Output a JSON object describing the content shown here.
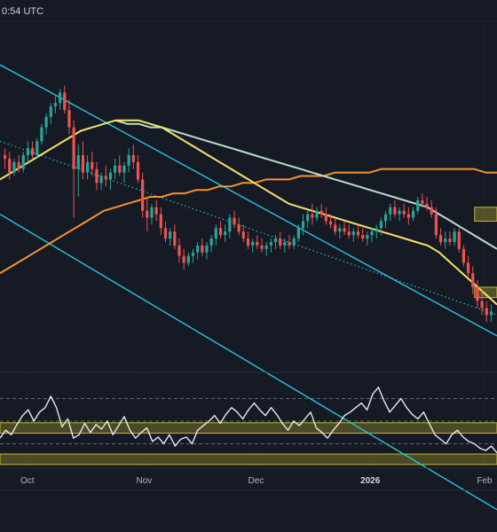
{
  "header": {
    "timestamp": "0:54 UTC"
  },
  "colors": {
    "background": "#161a25",
    "up_candle": "#26a69a",
    "down_candle": "#ef5350",
    "channel": "#26c6da",
    "mid_line": "#26c6da",
    "ma_fast": "#f7e36a",
    "ma_mid": "#b8e0c8",
    "ma_slow": "#f5922f",
    "support_zone": "#c8b830",
    "rsi_line": "#e6e9f0",
    "grid": "#2a2e39"
  },
  "chart_data": {
    "type": "candlestick",
    "title": "",
    "xlabel": "",
    "ylabel": "",
    "x_ticks": [
      {
        "label": "Oct",
        "bold": false
      },
      {
        "label": "Nov",
        "bold": false
      },
      {
        "label": "Dec",
        "bold": false
      },
      {
        "label": "2026",
        "bold": true
      },
      {
        "label": "Feb",
        "bold": false
      }
    ],
    "candles": [
      {
        "o": 62,
        "h": 64,
        "l": 58,
        "c": 61
      },
      {
        "o": 61,
        "h": 63,
        "l": 55,
        "c": 57
      },
      {
        "o": 57,
        "h": 61,
        "l": 56,
        "c": 60
      },
      {
        "o": 60,
        "h": 62,
        "l": 57,
        "c": 58
      },
      {
        "o": 58,
        "h": 63,
        "l": 57,
        "c": 62
      },
      {
        "o": 62,
        "h": 66,
        "l": 60,
        "c": 64
      },
      {
        "o": 64,
        "h": 66,
        "l": 61,
        "c": 62
      },
      {
        "o": 62,
        "h": 67,
        "l": 61,
        "c": 66
      },
      {
        "o": 66,
        "h": 71,
        "l": 65,
        "c": 70
      },
      {
        "o": 70,
        "h": 74,
        "l": 68,
        "c": 73
      },
      {
        "o": 73,
        "h": 77,
        "l": 71,
        "c": 76
      },
      {
        "o": 76,
        "h": 79,
        "l": 74,
        "c": 77
      },
      {
        "o": 77,
        "h": 81,
        "l": 75,
        "c": 80
      },
      {
        "o": 80,
        "h": 82,
        "l": 74,
        "c": 75
      },
      {
        "o": 75,
        "h": 78,
        "l": 68,
        "c": 70
      },
      {
        "o": 70,
        "h": 72,
        "l": 44,
        "c": 58
      },
      {
        "o": 58,
        "h": 65,
        "l": 50,
        "c": 62
      },
      {
        "o": 62,
        "h": 66,
        "l": 55,
        "c": 57
      },
      {
        "o": 57,
        "h": 62,
        "l": 55,
        "c": 60
      },
      {
        "o": 60,
        "h": 63,
        "l": 56,
        "c": 58
      },
      {
        "o": 58,
        "h": 60,
        "l": 52,
        "c": 54
      },
      {
        "o": 54,
        "h": 57,
        "l": 52,
        "c": 56
      },
      {
        "o": 56,
        "h": 59,
        "l": 53,
        "c": 55
      },
      {
        "o": 55,
        "h": 58,
        "l": 52,
        "c": 57
      },
      {
        "o": 57,
        "h": 61,
        "l": 55,
        "c": 59
      },
      {
        "o": 59,
        "h": 62,
        "l": 56,
        "c": 57
      },
      {
        "o": 57,
        "h": 60,
        "l": 54,
        "c": 59
      },
      {
        "o": 59,
        "h": 64,
        "l": 57,
        "c": 62
      },
      {
        "o": 62,
        "h": 65,
        "l": 58,
        "c": 60
      },
      {
        "o": 60,
        "h": 62,
        "l": 54,
        "c": 55
      },
      {
        "o": 55,
        "h": 57,
        "l": 44,
        "c": 46
      },
      {
        "o": 46,
        "h": 50,
        "l": 40,
        "c": 44
      },
      {
        "o": 44,
        "h": 48,
        "l": 42,
        "c": 47
      },
      {
        "o": 47,
        "h": 49,
        "l": 43,
        "c": 45
      },
      {
        "o": 45,
        "h": 47,
        "l": 39,
        "c": 41
      },
      {
        "o": 41,
        "h": 43,
        "l": 37,
        "c": 38
      },
      {
        "o": 38,
        "h": 41,
        "l": 36,
        "c": 40
      },
      {
        "o": 40,
        "h": 42,
        "l": 35,
        "c": 36
      },
      {
        "o": 36,
        "h": 38,
        "l": 31,
        "c": 33
      },
      {
        "o": 33,
        "h": 35,
        "l": 29,
        "c": 31
      },
      {
        "o": 31,
        "h": 34,
        "l": 30,
        "c": 33
      },
      {
        "o": 33,
        "h": 35,
        "l": 31,
        "c": 34
      },
      {
        "o": 34,
        "h": 37,
        "l": 32,
        "c": 36
      },
      {
        "o": 36,
        "h": 38,
        "l": 33,
        "c": 34
      },
      {
        "o": 34,
        "h": 37,
        "l": 32,
        "c": 36
      },
      {
        "o": 36,
        "h": 39,
        "l": 34,
        "c": 38
      },
      {
        "o": 38,
        "h": 42,
        "l": 36,
        "c": 41
      },
      {
        "o": 41,
        "h": 43,
        "l": 38,
        "c": 39
      },
      {
        "o": 39,
        "h": 42,
        "l": 37,
        "c": 40
      },
      {
        "o": 40,
        "h": 45,
        "l": 38,
        "c": 44
      },
      {
        "o": 44,
        "h": 46,
        "l": 41,
        "c": 42
      },
      {
        "o": 42,
        "h": 44,
        "l": 39,
        "c": 40
      },
      {
        "o": 40,
        "h": 42,
        "l": 37,
        "c": 38
      },
      {
        "o": 38,
        "h": 40,
        "l": 35,
        "c": 36
      },
      {
        "o": 36,
        "h": 38,
        "l": 34,
        "c": 37
      },
      {
        "o": 37,
        "h": 39,
        "l": 35,
        "c": 36
      },
      {
        "o": 36,
        "h": 38,
        "l": 34,
        "c": 35
      },
      {
        "o": 35,
        "h": 37,
        "l": 33,
        "c": 36
      },
      {
        "o": 36,
        "h": 38,
        "l": 34,
        "c": 37
      },
      {
        "o": 37,
        "h": 39,
        "l": 35,
        "c": 38
      },
      {
        "o": 38,
        "h": 40,
        "l": 35,
        "c": 36
      },
      {
        "o": 36,
        "h": 38,
        "l": 34,
        "c": 37
      },
      {
        "o": 37,
        "h": 39,
        "l": 35,
        "c": 36
      },
      {
        "o": 36,
        "h": 39,
        "l": 35,
        "c": 38
      },
      {
        "o": 38,
        "h": 42,
        "l": 37,
        "c": 41
      },
      {
        "o": 41,
        "h": 45,
        "l": 39,
        "c": 43
      },
      {
        "o": 43,
        "h": 46,
        "l": 41,
        "c": 45
      },
      {
        "o": 45,
        "h": 48,
        "l": 42,
        "c": 44
      },
      {
        "o": 44,
        "h": 47,
        "l": 43,
        "c": 46
      },
      {
        "o": 46,
        "h": 48,
        "l": 44,
        "c": 45
      },
      {
        "o": 45,
        "h": 47,
        "l": 42,
        "c": 43
      },
      {
        "o": 43,
        "h": 45,
        "l": 41,
        "c": 42
      },
      {
        "o": 42,
        "h": 44,
        "l": 39,
        "c": 40
      },
      {
        "o": 40,
        "h": 42,
        "l": 38,
        "c": 41
      },
      {
        "o": 41,
        "h": 43,
        "l": 39,
        "c": 40
      },
      {
        "o": 40,
        "h": 42,
        "l": 38,
        "c": 39
      },
      {
        "o": 39,
        "h": 41,
        "l": 37,
        "c": 40
      },
      {
        "o": 40,
        "h": 42,
        "l": 38,
        "c": 39
      },
      {
        "o": 39,
        "h": 41,
        "l": 37,
        "c": 38
      },
      {
        "o": 38,
        "h": 40,
        "l": 36,
        "c": 39
      },
      {
        "o": 39,
        "h": 41,
        "l": 37,
        "c": 40
      },
      {
        "o": 40,
        "h": 42,
        "l": 38,
        "c": 41
      },
      {
        "o": 41,
        "h": 44,
        "l": 39,
        "c": 43
      },
      {
        "o": 43,
        "h": 46,
        "l": 41,
        "c": 45
      },
      {
        "o": 45,
        "h": 48,
        "l": 43,
        "c": 47
      },
      {
        "o": 47,
        "h": 49,
        "l": 44,
        "c": 45
      },
      {
        "o": 45,
        "h": 47,
        "l": 43,
        "c": 46
      },
      {
        "o": 46,
        "h": 48,
        "l": 44,
        "c": 45
      },
      {
        "o": 45,
        "h": 47,
        "l": 42,
        "c": 44
      },
      {
        "o": 44,
        "h": 47,
        "l": 43,
        "c": 46
      },
      {
        "o": 46,
        "h": 50,
        "l": 45,
        "c": 49
      },
      {
        "o": 49,
        "h": 51,
        "l": 47,
        "c": 48
      },
      {
        "o": 48,
        "h": 50,
        "l": 46,
        "c": 47
      },
      {
        "o": 47,
        "h": 49,
        "l": 44,
        "c": 45
      },
      {
        "o": 45,
        "h": 47,
        "l": 38,
        "c": 39
      },
      {
        "o": 39,
        "h": 41,
        "l": 36,
        "c": 37
      },
      {
        "o": 37,
        "h": 40,
        "l": 35,
        "c": 38
      },
      {
        "o": 38,
        "h": 40,
        "l": 36,
        "c": 37
      },
      {
        "o": 37,
        "h": 41,
        "l": 36,
        "c": 40
      },
      {
        "o": 40,
        "h": 41,
        "l": 34,
        "c": 35
      },
      {
        "o": 35,
        "h": 36,
        "l": 30,
        "c": 31
      },
      {
        "o": 31,
        "h": 33,
        "l": 27,
        "c": 28
      },
      {
        "o": 28,
        "h": 30,
        "l": 22,
        "c": 24
      },
      {
        "o": 24,
        "h": 26,
        "l": 18,
        "c": 20
      },
      {
        "o": 20,
        "h": 23,
        "l": 16,
        "c": 18
      },
      {
        "o": 18,
        "h": 20,
        "l": 14,
        "c": 16
      },
      {
        "o": 16,
        "h": 19,
        "l": 14,
        "c": 17
      }
    ],
    "price_range": [
      0,
      100
    ],
    "ma_fast": [
      55,
      57,
      59,
      61,
      63,
      65,
      67,
      69,
      70,
      71,
      72,
      72,
      72,
      71,
      70,
      68,
      66,
      64,
      62,
      60,
      58,
      56,
      54,
      52,
      50,
      48,
      47,
      46,
      45,
      44,
      43,
      42,
      41,
      40,
      39,
      38,
      37,
      36,
      34,
      31,
      28,
      25,
      22,
      19
    ],
    "ma_mid": [
      null,
      null,
      null,
      null,
      null,
      null,
      null,
      null,
      null,
      null,
      72,
      71,
      71,
      70,
      70,
      69,
      68,
      67,
      66,
      65,
      64,
      63,
      62,
      61,
      60,
      59,
      58,
      57,
      56,
      55,
      54,
      53,
      52,
      51,
      50,
      49,
      48,
      47,
      45,
      43,
      41,
      39,
      37,
      35
    ],
    "ma_slow": [
      28,
      30,
      32,
      34,
      36,
      38,
      40,
      42,
      44,
      46,
      47,
      48,
      49,
      50,
      50,
      51,
      51,
      52,
      52,
      53,
      53,
      54,
      54,
      55,
      55,
      55,
      56,
      56,
      56,
      57,
      57,
      57,
      57,
      58,
      58,
      58,
      58,
      58,
      58,
      58,
      58,
      58,
      57,
      57
    ],
    "channel_upper": [
      88,
      10
    ],
    "channel_lower": [
      45,
      -40
    ],
    "mid_trend": [
      66,
      16
    ],
    "resistance_zones": [
      [
        43,
        47
      ],
      [
        21,
        24
      ]
    ],
    "support_zones": [
      [
        -18,
        -15
      ],
      [
        -27,
        -24
      ]
    ],
    "rsi": [
      35,
      42,
      38,
      47,
      55,
      60,
      50,
      58,
      62,
      72,
      62,
      45,
      52,
      35,
      38,
      48,
      40,
      47,
      43,
      50,
      38,
      46,
      54,
      42,
      35,
      40,
      44,
      32,
      36,
      30,
      38,
      28,
      34,
      36,
      30,
      42,
      46,
      50,
      55,
      48,
      56,
      62,
      58,
      52,
      60,
      66,
      60,
      55,
      62,
      56,
      48,
      42,
      50,
      46,
      52,
      58,
      44,
      40,
      35,
      42,
      48,
      55,
      58,
      62,
      66,
      60,
      74,
      80,
      68,
      58,
      64,
      70,
      62,
      56,
      52,
      58,
      48,
      38,
      34,
      30,
      38,
      42,
      36,
      32,
      30,
      26,
      24,
      28,
      22
    ],
    "rsi_levels": [
      70,
      50,
      30
    ],
    "rsi_range": [
      10,
      90
    ]
  }
}
